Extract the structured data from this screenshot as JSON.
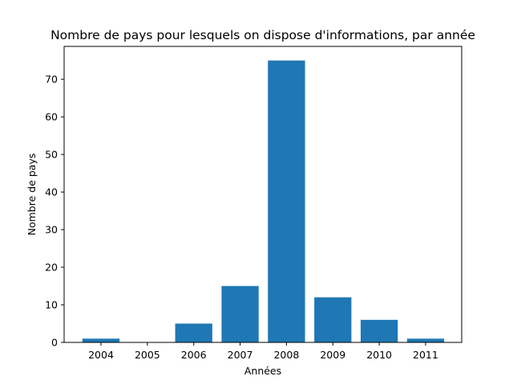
{
  "chart_data": {
    "type": "bar",
    "title": "Nombre de pays pour lesquels on dispose d'informations, par année",
    "xlabel": "Années",
    "ylabel": "Nombre de pays",
    "categories": [
      "2004",
      "2005",
      "2006",
      "2007",
      "2008",
      "2009",
      "2010",
      "2011"
    ],
    "values": [
      1,
      0,
      5,
      15,
      75,
      12,
      6,
      1
    ],
    "ylim": [
      0,
      78.75
    ],
    "yticks": [
      "0",
      "10",
      "20",
      "30",
      "40",
      "50",
      "60",
      "70"
    ],
    "bar_color": "#1f77b4",
    "grid": false,
    "legend": "none"
  }
}
